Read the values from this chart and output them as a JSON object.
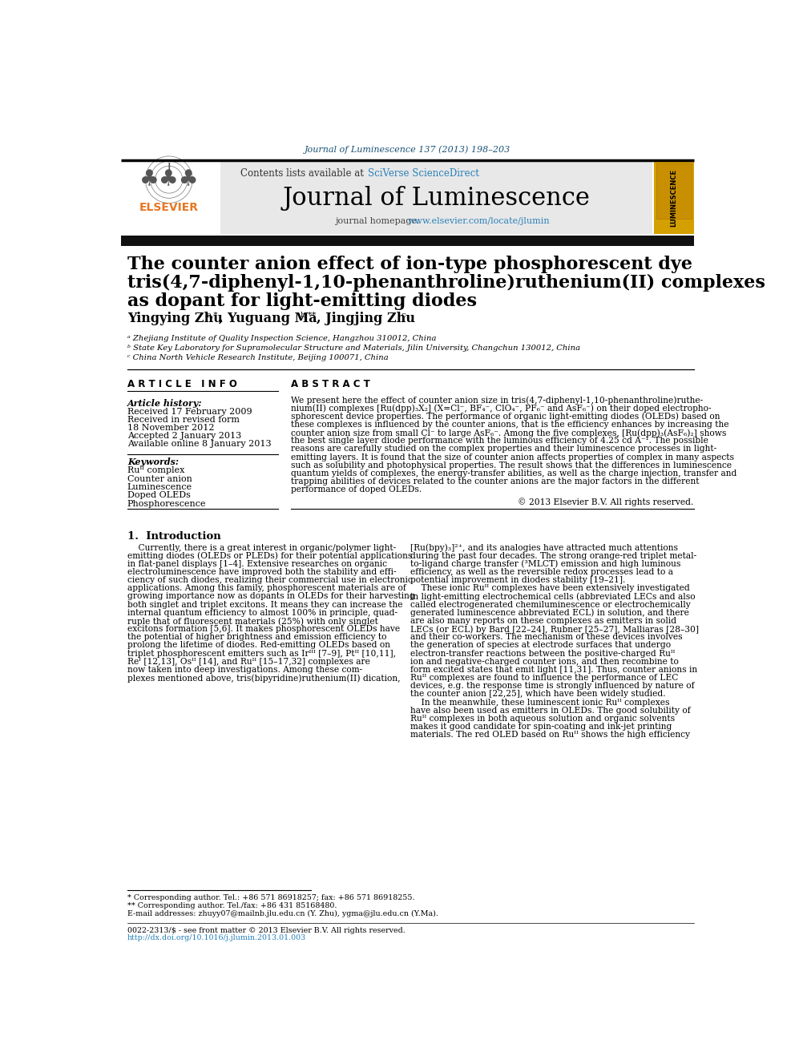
{
  "journal_ref": "Journal of Luminescence 137 (2013) 198–203",
  "paper_title_line1": "The counter anion effect of ion-type phosphorescent dye",
  "paper_title_line2": "tris(4,7-diphenyl-1,10-phenanthroline)ruthenium(II) complexes",
  "paper_title_line3": "as dopant for light-emitting diodes",
  "affil_a": "ᵃ Zhejiang Institute of Quality Inspection Science, Hangzhou 310012, China",
  "affil_b": "ᵇ State Key Laboratory for Supramolecular Structure and Materials, Jilin University, Changchun 130012, China",
  "affil_c": "ᶜ China North Vehicle Research Institute, Beijing 100071, China",
  "received_1": "Received 17 February 2009",
  "received_revised": "Received in revised form",
  "received_revised_date": "18 November 2012",
  "accepted": "Accepted 2 January 2013",
  "available_online": "Available online 8 January 2013",
  "keyword1": "Ruᴵᴵ complex",
  "keyword2": "Counter anion",
  "keyword3": "Luminescence",
  "keyword4": "Doped OLEDs",
  "keyword5": "Phosphorescence",
  "copyright": "© 2013 Elsevier B.V. All rights reserved.",
  "footnote1": "* Corresponding author. Tel.: +86 571 86918257; fax: +86 571 86918255.",
  "footnote2": "** Corresponding author. Tel./fax: +86 431 85168480.",
  "footnote3": "E-mail addresses: zhuyy07@mailnb.jlu.edu.cn (Y. Zhu), ygma@jlu.edu.cn (Y.Ma).",
  "copyright_bar": "0022-2313/$ - see front matter © 2013 Elsevier B.V. All rights reserved.",
  "doi": "http://dx.doi.org/10.1016/j.jlumin.2013.01.003",
  "bg_color": "#ffffff",
  "journal_ref_color": "#1a5276",
  "sciverse_color": "#2980b9",
  "elsevier_orange": "#e87722",
  "link_color": "#2980b9",
  "abstract_lines": [
    "We present here the effect of counter anion size in tris(4,7-diphenyl-1,10-phenanthroline)ruthe-",
    "nium(II) complexes [Ru(dpp)₃X₂] (X=Cl⁻, BF₄⁻, ClO₄⁻, PF₆⁻ and AsF₆⁻) on their doped electropho-",
    "sphorescent device properties. The performance of organic light-emitting diodes (OLEDs) based on",
    "these complexes is influenced by the counter anions, that is the efficiency enhances by increasing the",
    "counter anion size from small Cl⁻ to large AsF₆⁻. Among the five complexes, [Ru(dpp)₃(AsF₆)₂] shows",
    "the best single layer diode performance with the luminous efficiency of 4.25 cd A⁻¹. The possible",
    "reasons are carefully studied on the complex properties and their luminescence processes in light-",
    "emitting layers. It is found that the size of counter anion affects properties of complex in many aspects",
    "such as solubility and photophysical properties. The result shows that the differences in luminescence",
    "quantum yields of complexes, the energy-transfer abilities, as well as the charge injection, transfer and",
    "trapping abilities of devices related to the counter anions are the major factors in the different",
    "performance of doped OLEDs."
  ],
  "intro_col1_lines": [
    "    Currently, there is a great interest in organic/polymer light-",
    "emitting diodes (OLEDs or PLEDs) for their potential applications",
    "in flat-panel displays [1–4]. Extensive researches on organic",
    "electroluminescence have improved both the stability and effi-",
    "ciency of such diodes, realizing their commercial use in electronic",
    "applications. Among this family, phosphorescent materials are of",
    "growing importance now as dopants in OLEDs for their harvesting",
    "both singlet and triplet excitons. It means they can increase the",
    "internal quantum efficiency to almost 100% in principle, quad-",
    "ruple that of fluorescent materials (25%) with only singlet",
    "excitons formation [5,6]. It makes phosphorescent OLEDs have",
    "the potential of higher brightness and emission efficiency to",
    "prolong the lifetime of diodes. Red-emitting OLEDs based on",
    "triplet phosphorescent emitters such as Irᴵᴵᴵ [7–9], Ptᴵᴵ [10,11],",
    "Reᴵ [12,13], Osᴵᴵ [14], and Ruᴵᴵ [15–17,32] complexes are",
    "now taken into deep investigations. Among these com-",
    "plexes mentioned above, tris(bipyridine)ruthenium(II) dication,"
  ],
  "intro_col2_lines": [
    "[Ru(bpy)₃]²⁺, and its analogies have attracted much attentions",
    "during the past four decades. The strong orange-red triplet metal-",
    "to-ligand charge transfer (³MLCT) emission and high luminous",
    "efficiency, as well as the reversible redox processes lead to a",
    "potential improvement in diodes stability [19–21].",
    "    These ionic Ruᴵᴵ complexes have been extensively investigated",
    "in light-emitting electrochemical cells (abbreviated LECs and also",
    "called electrogenerated chemiluminescence or electrochemically",
    "generated luminescence abbreviated ECL) in solution, and there",
    "are also many reports on these complexes as emitters in solid",
    "LECs (or ECL) by Bard [22–24], Rubner [25–27], Malliaras [28–30]",
    "and their co-workers. The mechanism of these devices involves",
    "the generation of species at electrode surfaces that undergo",
    "electron-transfer reactions between the positive-charged Ruᴵᴵ",
    "ion and negative-charged counter ions, and then recombine to",
    "form excited states that emit light [11,31]. Thus, counter anions in",
    "Ruᴵᴵ complexes are found to influence the performance of LEC",
    "devices, e.g. the response time is strongly influenced by nature of",
    "the counter anion [22,25], which have been widely studied.",
    "    In the meanwhile, these luminescent ionic Ruᴵᴵ complexes",
    "have also been used as emitters in OLEDs. The good solubility of",
    "Ruᴵᴵ complexes in both aqueous solution and organic solvents",
    "makes it good candidate for spin-coating and ink-jet printing",
    "materials. The red OLED based on Ruᴵᴵ shows the high efficiency"
  ]
}
